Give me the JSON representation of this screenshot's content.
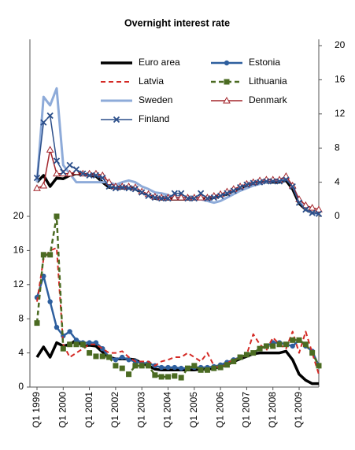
{
  "chart_data": {
    "type": "line",
    "title": "Overnight interest rate",
    "categories": [
      "Q1 1999",
      null,
      null,
      null,
      "Q1 2000",
      null,
      null,
      null,
      "Q1 2001",
      null,
      null,
      null,
      "Q1 2002",
      null,
      null,
      null,
      "Q1 2003",
      null,
      null,
      null,
      "Q1 2004",
      null,
      null,
      null,
      "Q1 2005",
      null,
      null,
      null,
      "Q1 2006",
      null,
      null,
      null,
      "Q1 2007",
      null,
      null,
      null,
      "Q1 2008",
      null,
      null,
      null,
      "Q1 2009",
      null,
      null,
      null
    ],
    "ylim": [
      0,
      40
    ],
    "yticks": [
      0,
      4,
      8,
      12,
      16,
      20
    ],
    "y2lim": [
      -20,
      20
    ],
    "y2ticks": [
      0,
      4,
      8,
      12,
      16,
      20
    ],
    "grid": false,
    "series": [
      {
        "name": "Euro area",
        "color": "#000000",
        "axis": "y2",
        "width": 3.5,
        "dash": "solid",
        "marker": "none",
        "values": [
          4,
          4.8,
          3.5,
          4.5,
          4.4,
          4.8,
          5,
          4.9,
          4.8,
          4.7,
          4.0,
          3.4,
          3.3,
          3.3,
          3.3,
          3.2,
          2.8,
          2.5,
          2.1,
          2.0,
          2.0,
          2.0,
          2.0,
          2.0,
          2.0,
          2.1,
          2.1,
          2.2,
          2.4,
          2.6,
          3.0,
          3.3,
          3.6,
          3.9,
          4.0,
          4.0,
          4.0,
          4.0,
          4.2,
          3.2,
          1.5,
          0.8,
          0.4,
          0.4
        ]
      },
      {
        "name": "Sweden",
        "color": "#8eabd9",
        "axis": "y2",
        "width": 3,
        "dash": "solid",
        "marker": "none",
        "values": [
          4,
          14,
          13,
          15,
          6,
          5,
          4,
          4,
          4,
          4,
          4,
          4,
          3.7,
          4,
          4.2,
          4,
          3.5,
          3.2,
          2.8,
          2.7,
          2.5,
          2.2,
          2.1,
          2.1,
          2,
          2,
          1.8,
          1.6,
          1.8,
          2.2,
          2.6,
          3,
          3.3,
          3.6,
          3.8,
          4,
          4.1,
          4.2,
          4.4,
          3.6,
          1.8,
          0.8,
          0.4,
          0.3
        ]
      },
      {
        "name": "Denmark",
        "color": "#a3262c",
        "axis": "y2",
        "width": 1.5,
        "dash": "solid",
        "marker": "triangle",
        "values": [
          3.3,
          3.6,
          7.8,
          5,
          5,
          5,
          5.2,
          5,
          5,
          5,
          4.8,
          4,
          3.5,
          3.5,
          3.5,
          3.4,
          2.9,
          2.6,
          2.3,
          2.2,
          2.2,
          2.2,
          2.2,
          2.2,
          2.2,
          2.2,
          2.2,
          2.4,
          2.6,
          2.9,
          3.2,
          3.5,
          3.8,
          4,
          4.2,
          4.3,
          4.3,
          4.3,
          4.7,
          3.6,
          2,
          1.3,
          1,
          0.8
        ]
      },
      {
        "name": "Finland",
        "color": "#2c4f8a",
        "axis": "y2",
        "width": 1.5,
        "dash": "solid",
        "marker": "x",
        "values": [
          4.5,
          11,
          11.8,
          6.5,
          5.2,
          6,
          5.5,
          5,
          4.8,
          4.8,
          4.5,
          3.5,
          3.3,
          3.4,
          3.3,
          3.2,
          2.8,
          2.4,
          2.2,
          2.1,
          2.1,
          2.7,
          2.7,
          2.1,
          2.1,
          2.7,
          2.1,
          2.2,
          2.4,
          2.7,
          3,
          3.4,
          3.7,
          3.9,
          4,
          4.1,
          4.1,
          4.1,
          4.3,
          3.5,
          1.6,
          0.8,
          0.4,
          0.3
        ]
      },
      {
        "name": "Euro area",
        "color": "#000000",
        "axis": "y",
        "width": 3.5,
        "dash": "solid",
        "marker": "none",
        "values": [
          3.5,
          4.7,
          3.5,
          5.2,
          4.8,
          5,
          5.5,
          4.8,
          4.9,
          4.8,
          4.1,
          3.5,
          3.3,
          3.3,
          3.3,
          3.2,
          2.8,
          2.5,
          2.1,
          2.0,
          2.0,
          2.0,
          2.0,
          2.0,
          2.0,
          2.1,
          2.1,
          2.2,
          2.4,
          2.6,
          3.0,
          3.3,
          3.6,
          3.9,
          4.0,
          4.0,
          4.0,
          4.0,
          4.2,
          3.2,
          1.5,
          0.8,
          0.4,
          0.4
        ]
      },
      {
        "name": "Estonia",
        "color": "#2e5f9e",
        "axis": "y",
        "width": 2.5,
        "dash": "solid",
        "marker": "circle",
        "values": [
          10.5,
          13,
          10,
          7,
          6,
          6.5,
          5.5,
          5.2,
          5.2,
          5.2,
          4.5,
          3.5,
          3.2,
          3.5,
          3.2,
          3,
          2.8,
          2.8,
          2.5,
          2.3,
          2.3,
          2.3,
          2.2,
          2.2,
          2.3,
          2.3,
          2.3,
          2.4,
          2.6,
          2.9,
          3.2,
          3.5,
          3.8,
          4,
          4.5,
          4.8,
          5.2,
          5.2,
          5,
          4.8,
          5.5,
          4.8,
          4.2,
          2.5
        ]
      },
      {
        "name": "Latvia",
        "color": "#d42a25",
        "axis": "y",
        "width": 2,
        "dash": "dashed",
        "marker": "none",
        "values": [
          10,
          15,
          16,
          16.3,
          5,
          3.5,
          4,
          4.5,
          5,
          5,
          4.5,
          4,
          4,
          4.2,
          3.5,
          3,
          3,
          3,
          2.5,
          3,
          3.2,
          3.5,
          3.5,
          4,
          3.5,
          3,
          4,
          2.5,
          2.2,
          2.8,
          3.2,
          3.4,
          3.8,
          6.2,
          5,
          4.3,
          5.8,
          5,
          4.5,
          6.5,
          4,
          6.5,
          4,
          1.5
        ]
      },
      {
        "name": "Lithuania",
        "color": "#4b6b22",
        "axis": "y",
        "width": 2.5,
        "dash": "dashed",
        "marker": "square",
        "values": [
          7.5,
          15.5,
          15.5,
          20,
          4.5,
          5,
          5,
          5,
          4,
          3.6,
          3.6,
          3.5,
          2.5,
          2.2,
          1.5,
          2.5,
          2.5,
          2.5,
          1.4,
          1.2,
          1.2,
          1.3,
          1.1,
          2.2,
          2.5,
          2,
          2,
          2.2,
          2.3,
          2.6,
          3,
          3.5,
          3.8,
          4,
          4.5,
          4.8,
          4.8,
          5,
          5,
          5.5,
          5.5,
          5,
          4,
          2.5
        ]
      }
    ]
  }
}
